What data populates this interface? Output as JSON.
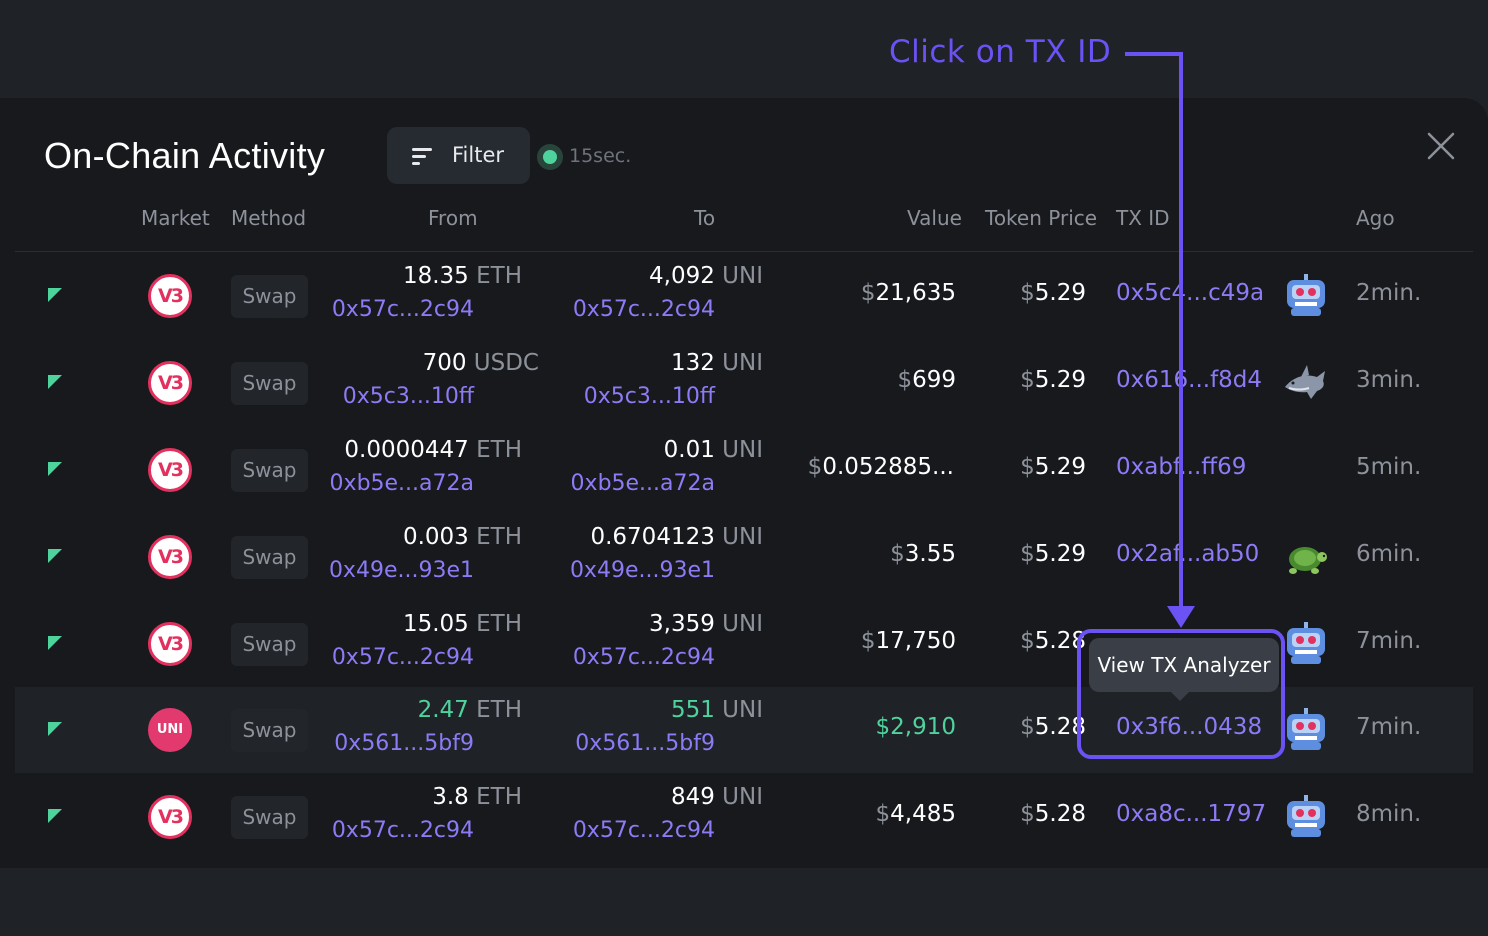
{
  "annotation": {
    "text": "Click on TX ID"
  },
  "panel": {
    "title": "On-Chain Activity",
    "filter_label": "Filter",
    "refresh_label": "15sec."
  },
  "columns": [
    "Market",
    "Method",
    "From",
    "To",
    "Value",
    "Token Price",
    "TX ID",
    "Ago"
  ],
  "rows": [
    {
      "market": "V3",
      "method": "Swap",
      "from_amount": "18.35",
      "from_unit": "ETH",
      "from_addr": "0x57c...2c94",
      "to_amount": "4,092",
      "to_unit": "UNI",
      "to_addr": "0x57c...2c94",
      "value_cur": "$",
      "value": "21,635",
      "price_cur": "$",
      "price": "5.29",
      "txid": "0x5c4...c49a",
      "badge": "robot-icon",
      "ago": "2min."
    },
    {
      "market": "V3",
      "method": "Swap",
      "from_amount": "700",
      "from_unit": "USDC",
      "from_addr": "0x5c3...10ff",
      "to_amount": "132",
      "to_unit": "UNI",
      "to_addr": "0x5c3...10ff",
      "value_cur": "$",
      "value": "699",
      "price_cur": "$",
      "price": "5.29",
      "txid": "0x616...f8d4",
      "badge": "shark-icon",
      "ago": "3min."
    },
    {
      "market": "V3",
      "method": "Swap",
      "from_amount": "0.0000447",
      "from_unit": "ETH",
      "from_addr": "0xb5e...a72a",
      "to_amount": "0.01",
      "to_unit": "UNI",
      "to_addr": "0xb5e...a72a",
      "value_cur": "$",
      "value": "0.052885...",
      "price_cur": "$",
      "price": "5.29",
      "txid": "0xabf...ff69",
      "badge": "",
      "ago": "5min."
    },
    {
      "market": "V3",
      "method": "Swap",
      "from_amount": "0.003",
      "from_unit": "ETH",
      "from_addr": "0x49e...93e1",
      "to_amount": "0.6704123",
      "to_unit": "UNI",
      "to_addr": "0x49e...93e1",
      "value_cur": "$",
      "value": "3.55",
      "price_cur": "$",
      "price": "5.29",
      "txid": "0x2af...ab50",
      "badge": "turtle-icon",
      "ago": "6min."
    },
    {
      "market": "V3",
      "method": "Swap",
      "from_amount": "15.05",
      "from_unit": "ETH",
      "from_addr": "0x57c...2c94",
      "to_amount": "3,359",
      "to_unit": "UNI",
      "to_addr": "0x57c...2c94",
      "value_cur": "$",
      "value": "17,750",
      "price_cur": "$",
      "price": "5.28",
      "txid": "",
      "badge": "robot-icon",
      "ago": "7min."
    },
    {
      "market": "UNI",
      "method": "Swap",
      "from_amount": "2.47",
      "from_unit": "ETH",
      "from_addr": "0x561...5bf9",
      "to_amount": "551",
      "to_unit": "UNI",
      "to_addr": "0x561...5bf9",
      "value_cur": "$",
      "value": "2,910",
      "price_cur": "$",
      "price": "5.28",
      "txid": "0x3f6...0438",
      "badge": "robot-icon",
      "ago": "7min."
    },
    {
      "market": "V3",
      "method": "Swap",
      "from_amount": "3.8",
      "from_unit": "ETH",
      "from_addr": "0x57c...2c94",
      "to_amount": "849",
      "to_unit": "UNI",
      "to_addr": "0x57c...2c94",
      "value_cur": "$",
      "value": "4,485",
      "price_cur": "$",
      "price": "5.28",
      "txid": "0xa8c...1797",
      "badge": "robot-icon",
      "ago": "8min."
    }
  ],
  "tooltip": {
    "text": "View TX Analyzer"
  },
  "colors": {
    "accent": "#6b52f5",
    "link": "#8b7cf6",
    "positive": "#4fd39d",
    "market": "#e2315e"
  }
}
